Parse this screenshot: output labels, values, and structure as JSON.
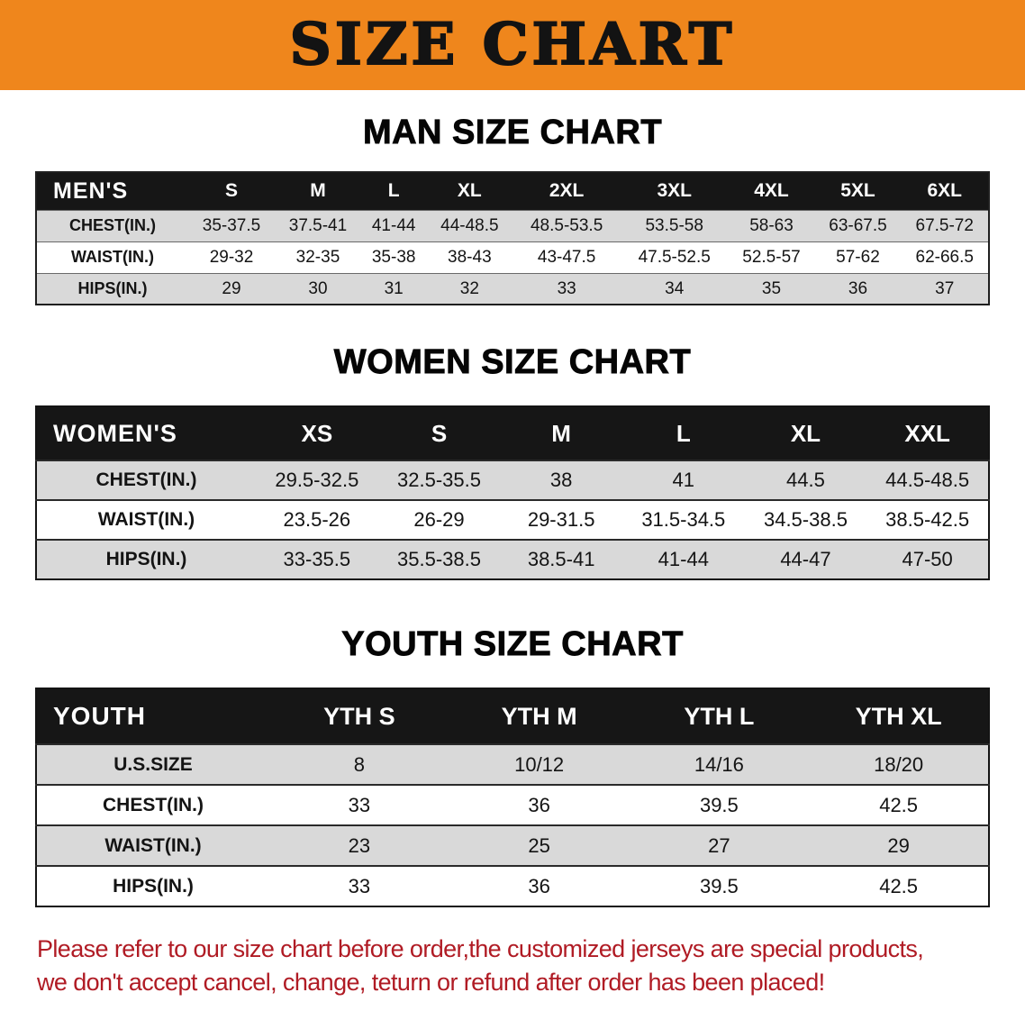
{
  "banner": {
    "title": "SIZE CHART"
  },
  "colors": {
    "banner_bg": "#EF861C",
    "header_bg": "#161616",
    "row_alt_bg": "#D9D9D9",
    "disclaimer_red": "#B01B24"
  },
  "men": {
    "heading": "MAN SIZE CHART",
    "table": {
      "header": [
        "MEN'S",
        "S",
        "M",
        "L",
        "XL",
        "2XL",
        "3XL",
        "4XL",
        "5XL",
        "6XL"
      ],
      "rows": [
        [
          "CHEST(IN.)",
          "35-37.5",
          "37.5-41",
          "41-44",
          "44-48.5",
          "48.5-53.5",
          "53.5-58",
          "58-63",
          "63-67.5",
          "67.5-72"
        ],
        [
          "WAIST(IN.)",
          "29-32",
          "32-35",
          "35-38",
          "38-43",
          "43-47.5",
          "47.5-52.5",
          "52.5-57",
          "57-62",
          "62-66.5"
        ],
        [
          "HIPS(IN.)",
          "29",
          "30",
          "31",
          "32",
          "33",
          "34",
          "35",
          "36",
          "37"
        ]
      ]
    }
  },
  "women": {
    "heading": "WOMEN SIZE CHART",
    "table": {
      "header": [
        "WOMEN'S",
        "XS",
        "S",
        "M",
        "L",
        "XL",
        "XXL"
      ],
      "rows": [
        [
          "CHEST(IN.)",
          "29.5-32.5",
          "32.5-35.5",
          "38",
          "41",
          "44.5",
          "44.5-48.5"
        ],
        [
          "WAIST(IN.)",
          "23.5-26",
          "26-29",
          "29-31.5",
          "31.5-34.5",
          "34.5-38.5",
          "38.5-42.5"
        ],
        [
          "HIPS(IN.)",
          "33-35.5",
          "35.5-38.5",
          "38.5-41",
          "41-44",
          "44-47",
          "47-50"
        ]
      ]
    }
  },
  "youth": {
    "heading": "YOUTH SIZE CHART",
    "table": {
      "header": [
        "YOUTH",
        "YTH S",
        "YTH M",
        "YTH L",
        "YTH XL"
      ],
      "rows": [
        [
          "U.S.SIZE",
          "8",
          "10/12",
          "14/16",
          "18/20"
        ],
        [
          "CHEST(IN.)",
          "33",
          "36",
          "39.5",
          "42.5"
        ],
        [
          "WAIST(IN.)",
          "23",
          "25",
          "27",
          "29"
        ],
        [
          "HIPS(IN.)",
          "33",
          "36",
          "39.5",
          "42.5"
        ]
      ]
    }
  },
  "disclaimer": {
    "lines": [
      "Please refer to our size chart before order,the customized jerseys are special products,",
      "we don't accept cancel, change, teturn or refund after order has been placed!"
    ]
  }
}
